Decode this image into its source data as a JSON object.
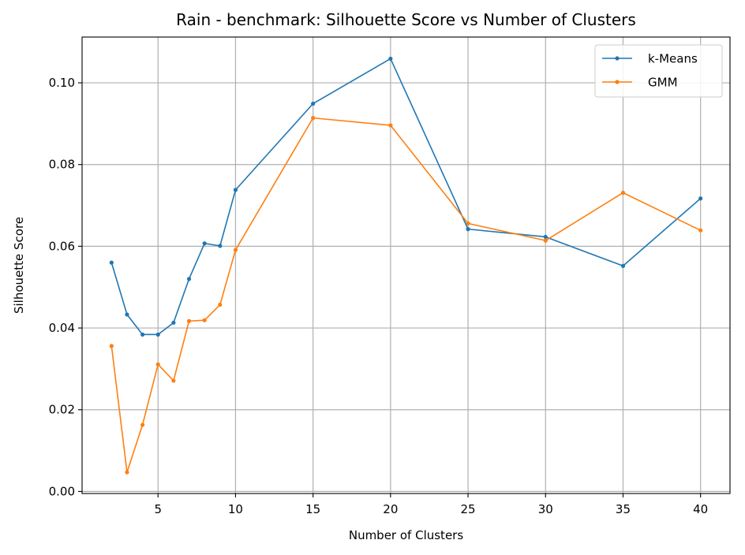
{
  "chart_data": {
    "type": "line",
    "title": "Rain - benchmark: Silhouette Score vs Number of Clusters",
    "xlabel": "Number of Clusters",
    "ylabel": "Silhouette Score",
    "xlim": [
      0.1,
      41.9
    ],
    "ylim": [
      -0.0005,
      0.1112
    ],
    "xticks": [
      5,
      10,
      15,
      20,
      25,
      30,
      35,
      40
    ],
    "yticks": [
      0.0,
      0.02,
      0.04,
      0.06,
      0.08,
      0.1
    ],
    "ytick_labels": [
      "0.00",
      "0.02",
      "0.04",
      "0.06",
      "0.08",
      "0.10"
    ],
    "grid": true,
    "legend": "top-right",
    "x": [
      2,
      3,
      4,
      5,
      6,
      7,
      8,
      9,
      10,
      15,
      20,
      25,
      30,
      35,
      40
    ],
    "series": [
      {
        "name": "k-Means",
        "color": "#1f77b4",
        "values": [
          0.056,
          0.0433,
          0.0384,
          0.0384,
          0.0413,
          0.052,
          0.0607,
          0.0601,
          0.0738,
          0.0949,
          0.1059,
          0.0642,
          0.0623,
          0.0552,
          0.0717
        ]
      },
      {
        "name": "GMM",
        "color": "#ff7f0e",
        "values": [
          0.0356,
          0.0047,
          0.0163,
          0.0311,
          0.0271,
          0.0417,
          0.0419,
          0.0457,
          0.0591,
          0.0914,
          0.0896,
          0.0656,
          0.0614,
          0.0731,
          0.0639
        ]
      }
    ]
  }
}
